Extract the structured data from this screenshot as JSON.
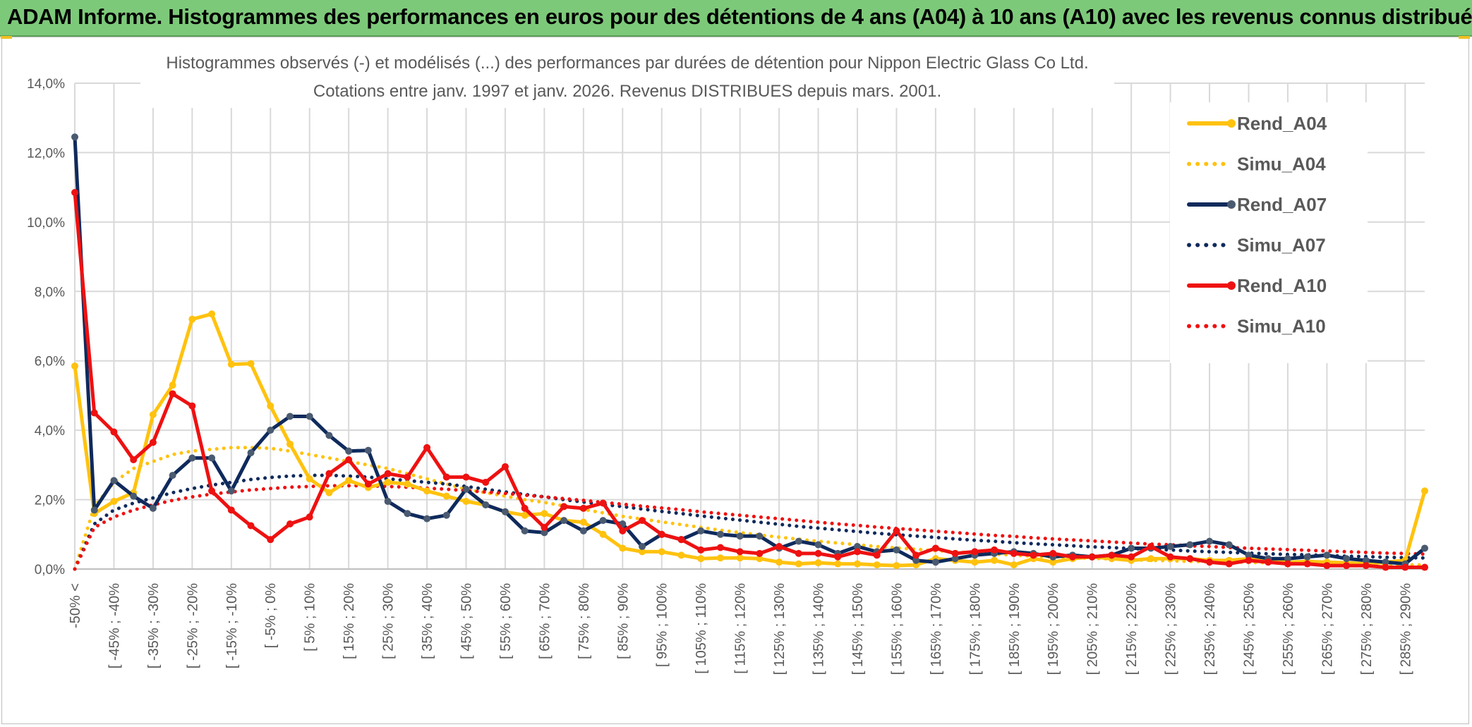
{
  "banner": {
    "title": "ADAM Informe. Histogrammes des performances en euros pour des détentions de 4 ans (A04) à 10 ans (A10) avec les revenus connus distribués"
  },
  "colors": {
    "banner": "#7dc97a",
    "rend_a04": "#ffc20e",
    "rend_a07": "#0f2a5c",
    "rend_a10": "#ee1111",
    "marker_a07": "#4a5a70",
    "grid": "#d9d9d9",
    "axis_text": "#595959"
  },
  "chart_data": {
    "type": "line",
    "title": "Histogrammes observés (-) et modélisés (...) des performances par durées de détention pour Nippon Electric Glass Co Ltd.",
    "subtitle": "Cotations entre janv. 1997 et janv. 2026. Revenus DISTRIBUES depuis mars. 2001.",
    "ylim": [
      0,
      14
    ],
    "yticks": [
      0,
      2,
      4,
      6,
      8,
      10,
      12,
      14
    ],
    "ytick_labels": [
      "0,0%",
      "2,0%",
      "4,0%",
      "6,0%",
      "8,0%",
      "10,0%",
      "12,0%",
      "14,0%"
    ],
    "n_points": 70,
    "xtick_labels": [
      "-50% <",
      "[ -45% ; -40%",
      "[ -35% ; -30%",
      "[ -25% ; -20%",
      "[ -15% ; -10%",
      "[ -5% ; 0%",
      "[ 5% ; 10%",
      "[ 15% ; 20%",
      "[ 25% ; 30%",
      "[ 35% ; 40%",
      "[ 45% ; 50%",
      "[ 55% ; 60%",
      "[ 65% ; 70%",
      "[ 75% ; 80%",
      "[ 85% ; 90%",
      "[ 95% ; 100%",
      "[ 105% ; 110%",
      "[ 115% ; 120%",
      "[ 125% ; 130%",
      "[ 135% ; 140%",
      "[ 145% ; 150%",
      "[ 155% ; 160%",
      "[ 165% ; 170%",
      "[ 175% ; 180%",
      "[ 185% ; 190%",
      "[ 195% ; 200%",
      "[ 205% ; 210%",
      "[ 215% ; 220%",
      "[ 225% ; 230%",
      "[ 235% ; 240%",
      "[ 245% ; 250%",
      "[ 255% ; 260%",
      "[ 265% ; 270%",
      "[ 275% ; 280%",
      "[ 285% ; 290%"
    ],
    "xtick_index": [
      0,
      2,
      4,
      6,
      8,
      10,
      12,
      14,
      16,
      18,
      20,
      22,
      24,
      26,
      28,
      30,
      32,
      34,
      36,
      38,
      40,
      42,
      44,
      46,
      48,
      50,
      52,
      54,
      56,
      58,
      60,
      62,
      64,
      66,
      68
    ],
    "legend_position": "top-right",
    "series": [
      {
        "name": "Rend_A04",
        "style": "solid",
        "color": "#ffc20e",
        "marker": true,
        "values": [
          5.85,
          1.6,
          1.95,
          2.2,
          4.45,
          5.3,
          7.2,
          7.35,
          5.9,
          5.92,
          4.7,
          3.6,
          2.6,
          2.2,
          2.55,
          2.35,
          2.5,
          2.45,
          2.25,
          2.1,
          1.95,
          1.85,
          1.65,
          1.55,
          1.6,
          1.4,
          1.35,
          1.0,
          0.6,
          0.5,
          0.5,
          0.4,
          0.3,
          0.32,
          0.32,
          0.3,
          0.2,
          0.15,
          0.18,
          0.15,
          0.15,
          0.12,
          0.1,
          0.12,
          0.3,
          0.25,
          0.2,
          0.25,
          0.12,
          0.3,
          0.2,
          0.3,
          0.35,
          0.3,
          0.25,
          0.3,
          0.3,
          0.3,
          0.25,
          0.25,
          0.3,
          0.25,
          0.2,
          0.22,
          0.2,
          0.18,
          0.15,
          0.2,
          0.25,
          2.25
        ]
      },
      {
        "name": "Simu_A04",
        "style": "dotted",
        "color": "#ffc20e",
        "marker": false,
        "values": [
          0.0,
          1.8,
          2.5,
          2.9,
          3.1,
          3.3,
          3.4,
          3.45,
          3.5,
          3.5,
          3.48,
          3.4,
          3.3,
          3.2,
          3.1,
          3.0,
          2.9,
          2.75,
          2.6,
          2.45,
          2.3,
          2.2,
          2.1,
          2.0,
          1.92,
          1.82,
          1.72,
          1.62,
          1.52,
          1.44,
          1.36,
          1.28,
          1.2,
          1.12,
          1.05,
          0.98,
          0.92,
          0.86,
          0.8,
          0.75,
          0.7,
          0.65,
          0.61,
          0.57,
          0.53,
          0.5,
          0.46,
          0.43,
          0.4,
          0.37,
          0.35,
          0.33,
          0.31,
          0.29,
          0.27,
          0.25,
          0.24,
          0.22,
          0.21,
          0.2,
          0.19,
          0.18,
          0.17,
          0.16,
          0.15,
          0.14,
          0.13,
          0.13,
          0.12,
          0.12
        ]
      },
      {
        "name": "Rend_A07",
        "style": "solid",
        "color": "#0f2a5c",
        "marker": true,
        "values": [
          12.45,
          1.7,
          2.55,
          2.1,
          1.75,
          2.7,
          3.2,
          3.2,
          2.25,
          3.35,
          4.0,
          4.4,
          4.4,
          3.85,
          3.4,
          3.42,
          1.95,
          1.6,
          1.45,
          1.55,
          2.3,
          1.85,
          1.65,
          1.1,
          1.05,
          1.4,
          1.1,
          1.4,
          1.3,
          0.65,
          1.0,
          0.85,
          1.1,
          1.0,
          0.95,
          0.95,
          0.6,
          0.8,
          0.7,
          0.45,
          0.65,
          0.5,
          0.55,
          0.25,
          0.2,
          0.3,
          0.4,
          0.45,
          0.5,
          0.45,
          0.35,
          0.4,
          0.35,
          0.4,
          0.6,
          0.6,
          0.65,
          0.7,
          0.8,
          0.7,
          0.4,
          0.3,
          0.3,
          0.35,
          0.4,
          0.3,
          0.25,
          0.2,
          0.15,
          0.6
        ]
      },
      {
        "name": "Simu_A07",
        "style": "dotted",
        "color": "#0f2a5c",
        "marker": false,
        "values": [
          0.0,
          1.3,
          1.7,
          1.9,
          2.05,
          2.2,
          2.32,
          2.42,
          2.5,
          2.58,
          2.64,
          2.68,
          2.7,
          2.7,
          2.68,
          2.65,
          2.6,
          2.55,
          2.5,
          2.45,
          2.38,
          2.3,
          2.22,
          2.15,
          2.08,
          2.0,
          1.93,
          1.86,
          1.8,
          1.73,
          1.66,
          1.6,
          1.53,
          1.47,
          1.41,
          1.35,
          1.29,
          1.23,
          1.18,
          1.13,
          1.08,
          1.03,
          0.99,
          0.95,
          0.91,
          0.87,
          0.83,
          0.8,
          0.76,
          0.73,
          0.7,
          0.67,
          0.64,
          0.62,
          0.59,
          0.57,
          0.55,
          0.52,
          0.5,
          0.48,
          0.46,
          0.44,
          0.42,
          0.41,
          0.39,
          0.37,
          0.36,
          0.34,
          0.33,
          0.32
        ]
      },
      {
        "name": "Rend_A10",
        "style": "solid",
        "color": "#ee1111",
        "marker": true,
        "values": [
          10.85,
          4.5,
          3.95,
          3.15,
          3.65,
          5.05,
          4.7,
          2.25,
          1.7,
          1.25,
          0.85,
          1.3,
          1.5,
          2.75,
          3.15,
          2.45,
          2.75,
          2.65,
          3.5,
          2.65,
          2.65,
          2.5,
          2.95,
          1.75,
          1.2,
          1.8,
          1.75,
          1.9,
          1.1,
          1.4,
          1.0,
          0.85,
          0.55,
          0.62,
          0.5,
          0.45,
          0.65,
          0.45,
          0.45,
          0.35,
          0.5,
          0.4,
          1.1,
          0.4,
          0.6,
          0.45,
          0.5,
          0.55,
          0.45,
          0.4,
          0.45,
          0.35,
          0.35,
          0.4,
          0.35,
          0.65,
          0.35,
          0.3,
          0.2,
          0.15,
          0.25,
          0.2,
          0.15,
          0.15,
          0.1,
          0.1,
          0.1,
          0.05,
          0.05,
          0.05
        ]
      },
      {
        "name": "Simu_A10",
        "style": "dotted",
        "color": "#ee1111",
        "marker": false,
        "values": [
          0.0,
          1.2,
          1.5,
          1.7,
          1.85,
          1.98,
          2.08,
          2.16,
          2.22,
          2.28,
          2.32,
          2.36,
          2.38,
          2.4,
          2.4,
          2.4,
          2.38,
          2.36,
          2.33,
          2.3,
          2.26,
          2.22,
          2.18,
          2.13,
          2.08,
          2.03,
          1.98,
          1.92,
          1.87,
          1.81,
          1.76,
          1.71,
          1.65,
          1.6,
          1.55,
          1.5,
          1.45,
          1.4,
          1.35,
          1.3,
          1.26,
          1.21,
          1.17,
          1.13,
          1.09,
          1.05,
          1.01,
          0.97,
          0.94,
          0.9,
          0.87,
          0.84,
          0.81,
          0.78,
          0.75,
          0.72,
          0.7,
          0.67,
          0.65,
          0.62,
          0.6,
          0.58,
          0.56,
          0.54,
          0.52,
          0.5,
          0.48,
          0.46,
          0.45,
          0.43
        ]
      }
    ]
  }
}
